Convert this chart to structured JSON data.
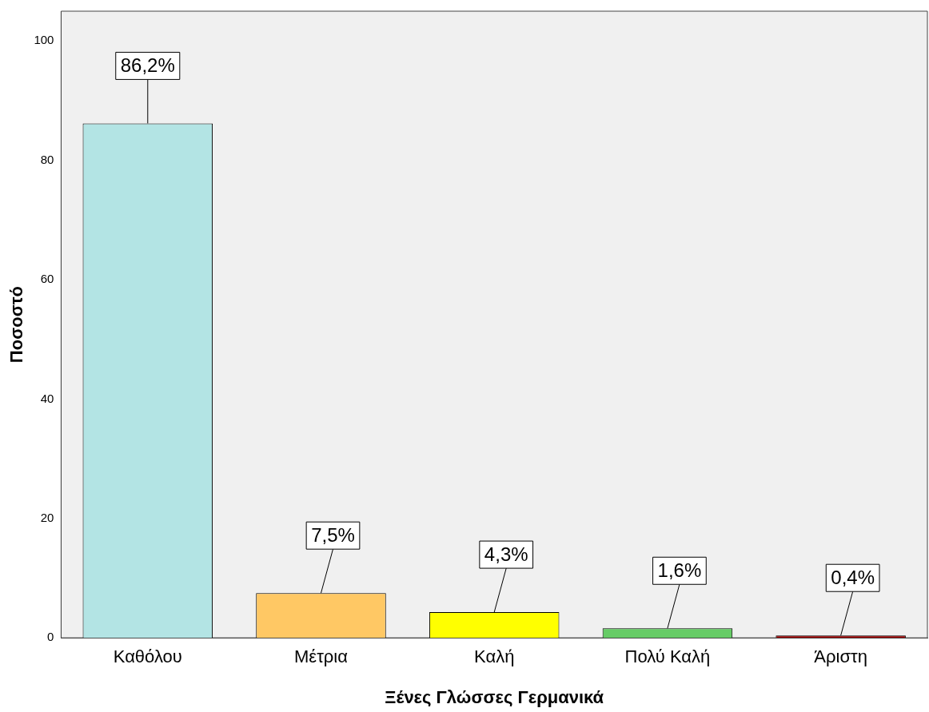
{
  "chart_data": {
    "type": "bar",
    "xlabel": "Ξένες Γλώσσες Γερμανικά",
    "ylabel": "Ποσοστό",
    "categories": [
      "Καθόλου",
      "Μέτρια",
      "Καλή",
      "Πολύ Καλή",
      "Άριστη"
    ],
    "values": [
      86.2,
      7.5,
      4.3,
      1.6,
      0.4
    ],
    "colors": [
      "#b3e4e4",
      "#ffc864",
      "#ffff00",
      "#66cc66",
      "#990000"
    ],
    "value_labels": [
      "86,2%",
      "7,5%",
      "4,3%",
      "1,6%",
      "0,4%"
    ],
    "ylim": [
      0,
      105
    ],
    "yticks": [
      0,
      20,
      40,
      60,
      80,
      100
    ],
    "grid": false,
    "legend": false
  }
}
